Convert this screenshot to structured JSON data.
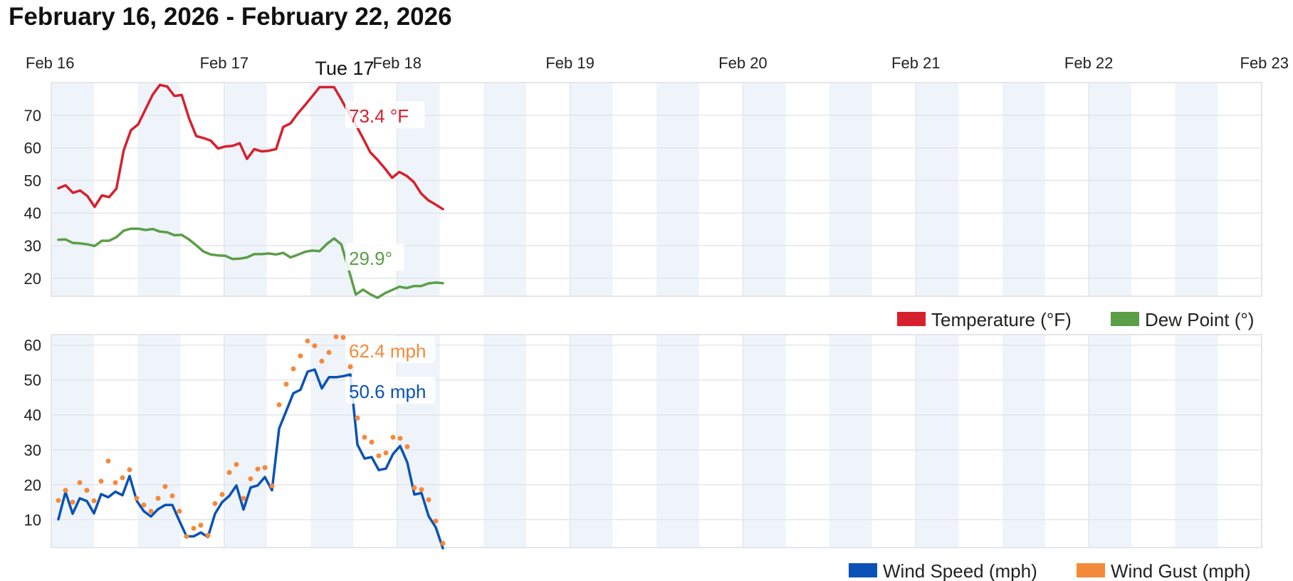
{
  "title": "February 16, 2026 - February 22, 2026",
  "colors": {
    "temperature": "#d7202e",
    "dew_point": "#5b9e47",
    "wind_speed": "#0a52b5",
    "wind_gust": "#f5893a",
    "day_band": "#eef4fa",
    "grid": "#e3e6ea"
  },
  "hover": {
    "label": "Tue 17"
  },
  "chart_data": [
    {
      "type": "line",
      "x_label": "",
      "y_label": "",
      "x_axis_ticks": [
        "Feb 16",
        "Feb 17",
        "Feb 18",
        "Feb 19",
        "Feb 20",
        "Feb 21",
        "Feb 22",
        "Feb 23"
      ],
      "x_range_days": [
        0,
        7
      ],
      "y_ticks": [
        "20",
        "30",
        "40",
        "50",
        "60",
        "70"
      ],
      "ylim": [
        14.5,
        80
      ],
      "grid": true,
      "legend_position": "bottom-right",
      "series": [
        {
          "name": "Temperature (°F)",
          "color_key": "temperature",
          "tooltip": "73.4 °F",
          "values": [
            47.6,
            48.5,
            46.2,
            46.9,
            45.2,
            41.9,
            45.4,
            44.9,
            47.5,
            59.2,
            65.4,
            67.2,
            71.8,
            76.3,
            79.3,
            78.8,
            75.9,
            76.2,
            69.1,
            63.6,
            63.0,
            62.2,
            59.8,
            60.4,
            60.6,
            61.4,
            56.6,
            59.6,
            58.9,
            59.1,
            59.6,
            66.4,
            67.5,
            70.5,
            73.1,
            75.8,
            78.6,
            78.6,
            78.6,
            74.8,
            70.8,
            67.1,
            62.9,
            58.6,
            56.3,
            53.7,
            50.8,
            52.6,
            51.4,
            49.5,
            46.0,
            43.9,
            42.6,
            41.2
          ]
        },
        {
          "name": "Dew Point (°)",
          "color_key": "dew_point",
          "tooltip": "29.9°",
          "values": [
            31.8,
            31.9,
            30.8,
            30.7,
            30.4,
            29.9,
            31.5,
            31.5,
            32.6,
            34.6,
            35.2,
            35.2,
            34.8,
            35.1,
            34.3,
            34.1,
            33.2,
            33.3,
            31.9,
            30.1,
            28.2,
            27.3,
            27.0,
            26.9,
            25.9,
            26.0,
            26.4,
            27.4,
            27.4,
            27.6,
            27.3,
            27.8,
            26.4,
            27.2,
            28.1,
            28.5,
            28.3,
            30.5,
            32.2,
            30.4,
            22.8,
            15.0,
            16.5,
            15.1,
            14.0,
            15.4,
            16.4,
            17.4,
            17.0,
            17.6,
            17.6,
            18.4,
            18.7,
            18.5
          ]
        }
      ]
    },
    {
      "type": "line",
      "x_label": "",
      "y_label": "",
      "x_range_days": [
        0,
        7
      ],
      "y_ticks": [
        "10",
        "20",
        "30",
        "40",
        "50",
        "60"
      ],
      "ylim": [
        2,
        63
      ],
      "grid": true,
      "legend_position": "bottom-right",
      "series": [
        {
          "name": "Wind Speed (mph)",
          "color_key": "wind_speed",
          "tooltip": "50.6 mph",
          "style": "line",
          "values": [
            10.1,
            17.9,
            11.7,
            16.1,
            15.3,
            11.8,
            17.3,
            16.4,
            18.0,
            17.0,
            22.5,
            15.4,
            12.4,
            10.9,
            13.0,
            14.2,
            14.2,
            9.6,
            5.2,
            5.2,
            6.3,
            5.0,
            11.7,
            15.0,
            16.8,
            19.8,
            12.9,
            19.2,
            19.8,
            22.2,
            18.4,
            36.1,
            41.1,
            46.2,
            47.2,
            52.4,
            53.0,
            47.6,
            50.8,
            50.8,
            51.1,
            51.6,
            31.5,
            27.5,
            27.9,
            24.2,
            24.6,
            28.8,
            31.1,
            26.4,
            17.2,
            17.6,
            11.0,
            7.8,
            1.8
          ]
        },
        {
          "name": "Wind Gust (mph)",
          "color_key": "wind_gust",
          "tooltip": "62.4 mph",
          "style": "dots",
          "values": [
            15.5,
            18.4,
            15.0,
            20.6,
            18.4,
            15.4,
            21.0,
            26.8,
            20.6,
            22.0,
            24.3,
            16.1,
            14.2,
            12.4,
            16.1,
            19.5,
            16.8,
            12.4,
            5.2,
            7.5,
            8.4,
            5.5,
            14.6,
            17.2,
            23.5,
            25.8,
            16.1,
            21.7,
            24.5,
            24.9,
            19.7,
            42.9,
            48.8,
            53.2,
            56.9,
            61.2,
            59.8,
            55.4,
            57.9,
            62.4,
            62.2,
            53.8,
            39.1,
            33.6,
            32.2,
            28.3,
            29.1,
            33.6,
            33.3,
            30.9,
            19.1,
            18.6,
            15.7,
            9.6,
            3.2
          ]
        }
      ]
    }
  ]
}
